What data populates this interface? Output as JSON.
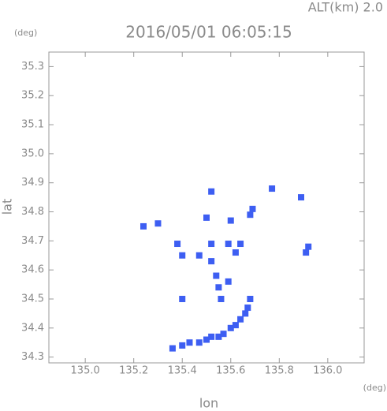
{
  "chart_data": {
    "type": "scatter",
    "title": "2016/05/01 06:05:15",
    "altitude": "ALT(km) 2.0",
    "x_label": "lon",
    "y_label": "lat",
    "x_unit": "(deg)",
    "y_unit": "(deg)",
    "xlim": [
      134.85,
      136.15
    ],
    "ylim": [
      34.28,
      35.35
    ],
    "xticks": [
      {
        "value": 135,
        "label": "135.0"
      },
      135.2,
      135.4,
      135.6,
      135.8,
      {
        "value": 136,
        "label": "136.0"
      }
    ],
    "yticks": [
      34.3,
      34.4,
      34.5,
      34.6,
      34.7,
      34.8,
      34.9,
      {
        "value": 35,
        "label": "35.0"
      },
      35.1,
      35.2,
      35.3
    ],
    "color": "#3d5ef2",
    "x": [
      135.77,
      135.89,
      135.52,
      135.69,
      135.68,
      135.6,
      135.5,
      135.24,
      135.3,
      135.38,
      135.4,
      135.47,
      135.52,
      135.52,
      135.59,
      135.64,
      135.62,
      135.54,
      135.59,
      135.55,
      135.56,
      135.4,
      135.91,
      135.92,
      135.36,
      135.4,
      135.43,
      135.47,
      135.5,
      135.52,
      135.55,
      135.57,
      135.6,
      135.62,
      135.64,
      135.66,
      135.67,
      135.68
    ],
    "values": [
      34.88,
      34.85,
      34.87,
      34.81,
      34.79,
      34.77,
      34.78,
      34.75,
      34.76,
      34.69,
      34.65,
      34.65,
      34.69,
      34.63,
      34.69,
      34.69,
      34.66,
      34.58,
      34.56,
      34.54,
      34.5,
      34.5,
      34.66,
      34.68,
      34.33,
      34.34,
      34.35,
      34.35,
      34.36,
      34.37,
      34.37,
      34.38,
      34.4,
      34.41,
      34.43,
      34.45,
      34.47,
      34.5
    ]
  }
}
